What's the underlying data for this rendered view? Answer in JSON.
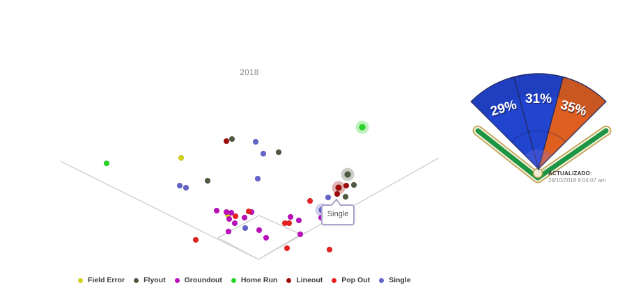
{
  "scatter_chart": {
    "year_label": "2018",
    "tooltip": {
      "text": "Single"
    }
  },
  "fan_chart": {
    "updated_label": "ACTUALIZADO:",
    "updated_value": "29/10/2018 9:04:07 am"
  },
  "chart_data": [
    {
      "type": "scatter",
      "title": "2018",
      "legend_position": "bottom",
      "units": "screen-px",
      "series": [
        {
          "name": "Field Error",
          "color": "#d2d21a",
          "points": [
            [
              260,
              227
            ],
            [
              327,
              309
            ]
          ]
        },
        {
          "name": "Flyout",
          "color": "#4e5a40",
          "points": [
            [
              333,
              200
            ],
            [
              400,
              219
            ],
            [
              298,
              260
            ],
            [
              508,
              266
            ],
            [
              496,
              283
            ],
            [
              499,
              251,
              "halo"
            ]
          ]
        },
        {
          "name": "Groundout",
          "color": "#bc0fbc",
          "points": [
            [
              311,
              303
            ],
            [
              325,
              305
            ],
            [
              332,
              306
            ],
            [
              361,
              305
            ],
            [
              351,
              313
            ],
            [
              329,
              315
            ],
            [
              337,
              321
            ],
            [
              328,
              333
            ],
            [
              372,
              331
            ],
            [
              382,
              342
            ],
            [
              417,
              312
            ],
            [
              429,
              317
            ],
            [
              431,
              337
            ],
            [
              461,
              313
            ]
          ]
        },
        {
          "name": "Home Run",
          "color": "#26d326",
          "points": [
            [
              153,
              235
            ],
            [
              520,
              183,
              "halo"
            ]
          ]
        },
        {
          "name": "Lineout",
          "color": "#9e0b0b",
          "points": [
            [
              325,
              203
            ],
            [
              497,
              267
            ],
            [
              484,
              279
            ],
            [
              486,
              270,
              "halo"
            ]
          ]
        },
        {
          "name": "Pop Out",
          "color": "#e82121",
          "points": [
            [
              445,
              289
            ],
            [
              357,
              304
            ],
            [
              338,
              311
            ],
            [
              281,
              345
            ],
            [
              409,
              321
            ],
            [
              415,
              321
            ],
            [
              412,
              357
            ],
            [
              473,
              359
            ]
          ]
        },
        {
          "name": "Single",
          "color": "#6363ca",
          "points": [
            [
              367,
              204
            ],
            [
              378,
              221
            ],
            [
              258,
              267
            ],
            [
              267,
              270
            ],
            [
              370,
              257
            ],
            [
              471,
              284
            ],
            [
              352,
              328
            ],
            [
              462,
              302,
              "halo"
            ]
          ]
        }
      ],
      "tooltip": {
        "text": "Single",
        "point": [
          462,
          302
        ]
      }
    },
    {
      "type": "pie",
      "labels": [
        "29%",
        "31%",
        "35%"
      ],
      "values": [
        29,
        31,
        35
      ],
      "colors": [
        "#2145cf",
        "#2145cf",
        "#de5f1f"
      ],
      "annotation": "ACTUALIZADO: 29/10/2018 9:04:07 am"
    }
  ]
}
